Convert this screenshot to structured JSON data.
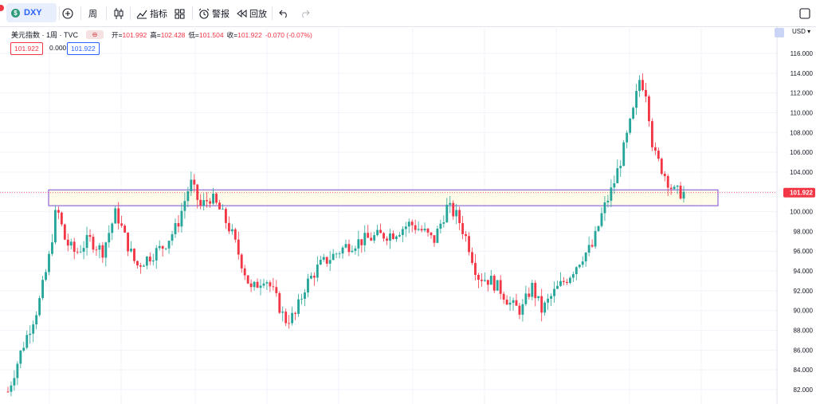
{
  "toolbar": {
    "symbol": "DXY",
    "symbol_icon": "$",
    "interval": "周",
    "indicators_label": "指标",
    "alerts_label": "警报",
    "replay_label": "回放"
  },
  "legend": {
    "title": "美元指数 · 1周 · TVC",
    "open_label": "开=",
    "open": "101.992",
    "high_label": "高=",
    "high": "102.428",
    "low_label": "低=",
    "low": "101.504",
    "close_label": "收=",
    "close": "101.922",
    "change": "-0.070 (-0.07%)",
    "badge1": "101.922",
    "badge2": "0.000",
    "badge3": "101.922"
  },
  "currency": "USD",
  "last_price_label": "101.922",
  "colors": {
    "up": "#26a69a",
    "down": "#f23645",
    "zone_border": "#7b4ad6",
    "zone_fill": "#fffbe0"
  },
  "chart_data": {
    "type": "candlestick",
    "ylim": [
      81.0,
      117.0
    ],
    "y_ticks": [
      "116.000",
      "114.000",
      "112.000",
      "110.000",
      "108.000",
      "106.000",
      "104.000",
      "102.000",
      "100.000",
      "98.000",
      "96.000",
      "94.000",
      "92.000",
      "90.000",
      "88.000",
      "86.000",
      "84.000",
      "82.000"
    ],
    "last_price": 101.922,
    "zone": {
      "low": 100.6,
      "high": 102.2
    },
    "close_path": [
      {
        "x": 0.0,
        "y": 81.8
      },
      {
        "x": 0.02,
        "y": 86.0
      },
      {
        "x": 0.045,
        "y": 90.5
      },
      {
        "x": 0.06,
        "y": 95.0
      },
      {
        "x": 0.072,
        "y": 100.5
      },
      {
        "x": 0.085,
        "y": 97.0
      },
      {
        "x": 0.1,
        "y": 95.8
      },
      {
        "x": 0.12,
        "y": 97.2
      },
      {
        "x": 0.14,
        "y": 96.0
      },
      {
        "x": 0.16,
        "y": 100.0
      },
      {
        "x": 0.175,
        "y": 97.0
      },
      {
        "x": 0.19,
        "y": 94.5
      },
      {
        "x": 0.21,
        "y": 95.5
      },
      {
        "x": 0.23,
        "y": 96.5
      },
      {
        "x": 0.25,
        "y": 98.5
      },
      {
        "x": 0.27,
        "y": 103.0
      },
      {
        "x": 0.285,
        "y": 100.5
      },
      {
        "x": 0.3,
        "y": 101.5
      },
      {
        "x": 0.315,
        "y": 100.0
      },
      {
        "x": 0.33,
        "y": 98.0
      },
      {
        "x": 0.345,
        "y": 95.0
      },
      {
        "x": 0.36,
        "y": 92.0
      },
      {
        "x": 0.38,
        "y": 93.5
      },
      {
        "x": 0.395,
        "y": 91.5
      },
      {
        "x": 0.41,
        "y": 89.0
      },
      {
        "x": 0.425,
        "y": 89.5
      },
      {
        "x": 0.44,
        "y": 92.5
      },
      {
        "x": 0.46,
        "y": 94.5
      },
      {
        "x": 0.48,
        "y": 95.5
      },
      {
        "x": 0.5,
        "y": 96.5
      },
      {
        "x": 0.52,
        "y": 97.0
      },
      {
        "x": 0.545,
        "y": 97.5
      },
      {
        "x": 0.57,
        "y": 97.8
      },
      {
        "x": 0.595,
        "y": 98.8
      },
      {
        "x": 0.615,
        "y": 98.0
      },
      {
        "x": 0.63,
        "y": 97.0
      },
      {
        "x": 0.65,
        "y": 100.5
      },
      {
        "x": 0.665,
        "y": 99.5
      },
      {
        "x": 0.68,
        "y": 97.0
      },
      {
        "x": 0.695,
        "y": 93.5
      },
      {
        "x": 0.715,
        "y": 93.0
      },
      {
        "x": 0.73,
        "y": 92.0
      },
      {
        "x": 0.745,
        "y": 90.5
      },
      {
        "x": 0.76,
        "y": 90.0
      },
      {
        "x": 0.775,
        "y": 92.5
      },
      {
        "x": 0.79,
        "y": 90.0
      },
      {
        "x": 0.81,
        "y": 92.0
      },
      {
        "x": 0.83,
        "y": 93.5
      },
      {
        "x": 0.85,
        "y": 95.5
      },
      {
        "x": 0.865,
        "y": 96.5
      },
      {
        "x": 0.88,
        "y": 100.0
      },
      {
        "x": 0.895,
        "y": 102.5
      },
      {
        "x": 0.91,
        "y": 106.0
      },
      {
        "x": 0.925,
        "y": 110.0
      },
      {
        "x": 0.935,
        "y": 113.5
      },
      {
        "x": 0.945,
        "y": 112.0
      },
      {
        "x": 0.955,
        "y": 106.0
      },
      {
        "x": 0.97,
        "y": 104.0
      },
      {
        "x": 0.985,
        "y": 102.0
      },
      {
        "x": 1.0,
        "y": 101.9
      }
    ],
    "candle_count": 215
  }
}
